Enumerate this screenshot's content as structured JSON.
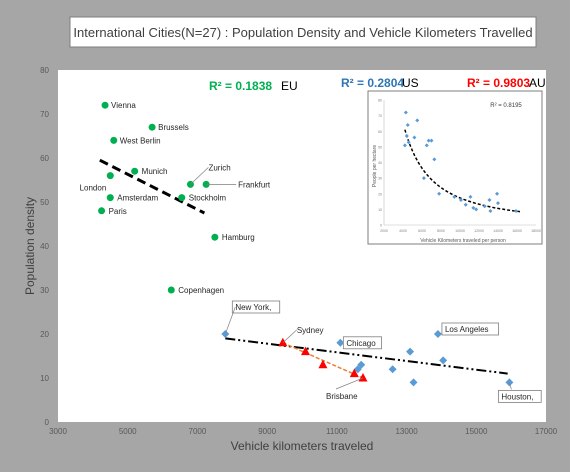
{
  "chart_data": {
    "type": "scatter",
    "title": "International Cities(N=27) : Population Density and Vehicle Kilometers Travelled",
    "xlabel": "Vehicle kilometers traveled",
    "ylabel": "Population density",
    "xlim": [
      3000,
      17000
    ],
    "ylim": [
      0,
      80
    ],
    "xticks": [
      "3000",
      "5000",
      "7000",
      "9000",
      "11000",
      "13000",
      "15000",
      "17000"
    ],
    "yticks": [
      "0",
      "10",
      "20",
      "30",
      "40",
      "50",
      "60",
      "70",
      "80"
    ],
    "grid": false,
    "series": [
      {
        "name": "EU",
        "color": "#00b050",
        "marker": "circle",
        "r2_label": "R² = 0.1838",
        "label_color": "#00b050",
        "points": [
          {
            "x": 4350,
            "y": 72,
            "label": "Vienna"
          },
          {
            "x": 5700,
            "y": 67,
            "label": "Brussels"
          },
          {
            "x": 4600,
            "y": 64,
            "label": "West Berlin"
          },
          {
            "x": 5200,
            "y": 57,
            "label": "Munich"
          },
          {
            "x": 4500,
            "y": 56,
            "label": "London"
          },
          {
            "x": 6800,
            "y": 54,
            "label": "Zurich"
          },
          {
            "x": 7250,
            "y": 54,
            "label": "Frankfurt"
          },
          {
            "x": 4500,
            "y": 51,
            "label": "Amsterdam"
          },
          {
            "x": 6550,
            "y": 51,
            "label": "Stockholm"
          },
          {
            "x": 4250,
            "y": 48,
            "label": "Paris"
          },
          {
            "x": 7500,
            "y": 42,
            "label": "Hamburg"
          },
          {
            "x": 6250,
            "y": 30,
            "label": "Copenhagen"
          }
        ],
        "trendline": [
          {
            "x": 4200,
            "y": 59.5
          },
          {
            "x": 7200,
            "y": 47.5
          }
        ]
      },
      {
        "name": "US",
        "color": "#5b9bd5",
        "marker": "diamond",
        "r2_label": "R² = 0.2804",
        "label_color": "#2e75b6",
        "points": [
          {
            "x": 7800,
            "y": 20,
            "label": "New York,"
          },
          {
            "x": 11100,
            "y": 18,
            "label": "Chicago"
          },
          {
            "x": 13900,
            "y": 20,
            "label": "Los Angeles"
          },
          {
            "x": 15950,
            "y": 9,
            "label": "Houston,"
          },
          {
            "x": 11600,
            "y": 12
          },
          {
            "x": 11700,
            "y": 13
          },
          {
            "x": 12600,
            "y": 12
          },
          {
            "x": 13100,
            "y": 16
          },
          {
            "x": 13200,
            "y": 9
          },
          {
            "x": 14050,
            "y": 14
          }
        ],
        "trendline": [
          {
            "x": 7800,
            "y": 19
          },
          {
            "x": 15900,
            "y": 11
          }
        ]
      },
      {
        "name": "AU",
        "color": "#ff0000",
        "marker": "triangle",
        "r2_label": "R² = 0.9803",
        "label_color": "#ff0000",
        "points": [
          {
            "x": 9450,
            "y": 18,
            "label": "Sydney"
          },
          {
            "x": 10100,
            "y": 16
          },
          {
            "x": 10600,
            "y": 13
          },
          {
            "x": 11500,
            "y": 11
          },
          {
            "x": 11750,
            "y": 10,
            "label": "Brisbane"
          }
        ],
        "trendline": [
          {
            "x": 9450,
            "y": 18
          },
          {
            "x": 11750,
            "y": 10
          }
        ],
        "trendline_color": "#ed7d31"
      }
    ],
    "inset": {
      "r2_label": "R² = 0.8195",
      "xlabel": "Vehicle Kilometers traveled per person",
      "ylabel": "People per hectare",
      "xlim": [
        2000,
        18000
      ],
      "ylim": [
        0,
        80
      ],
      "xticks": [
        "2000",
        "4000",
        "6000",
        "8000",
        "10000",
        "12000",
        "14000",
        "16000",
        "18000"
      ],
      "yticks": [
        "0",
        "10",
        "20",
        "30",
        "40",
        "50",
        "60",
        "70",
        "80"
      ],
      "points": [
        {
          "x": 4300,
          "y": 72
        },
        {
          "x": 4500,
          "y": 64
        },
        {
          "x": 4400,
          "y": 57
        },
        {
          "x": 4200,
          "y": 51
        },
        {
          "x": 4600,
          "y": 53
        },
        {
          "x": 5200,
          "y": 56
        },
        {
          "x": 5500,
          "y": 67
        },
        {
          "x": 6200,
          "y": 30
        },
        {
          "x": 6500,
          "y": 51
        },
        {
          "x": 6700,
          "y": 54
        },
        {
          "x": 7000,
          "y": 54
        },
        {
          "x": 7300,
          "y": 42
        },
        {
          "x": 7800,
          "y": 20
        },
        {
          "x": 9400,
          "y": 18
        },
        {
          "x": 10100,
          "y": 16
        },
        {
          "x": 10600,
          "y": 13
        },
        {
          "x": 11100,
          "y": 18
        },
        {
          "x": 11400,
          "y": 11
        },
        {
          "x": 11700,
          "y": 10
        },
        {
          "x": 12600,
          "y": 12
        },
        {
          "x": 13100,
          "y": 16
        },
        {
          "x": 13200,
          "y": 9
        },
        {
          "x": 13900,
          "y": 20
        },
        {
          "x": 14000,
          "y": 14
        },
        {
          "x": 15900,
          "y": 9
        }
      ]
    }
  }
}
